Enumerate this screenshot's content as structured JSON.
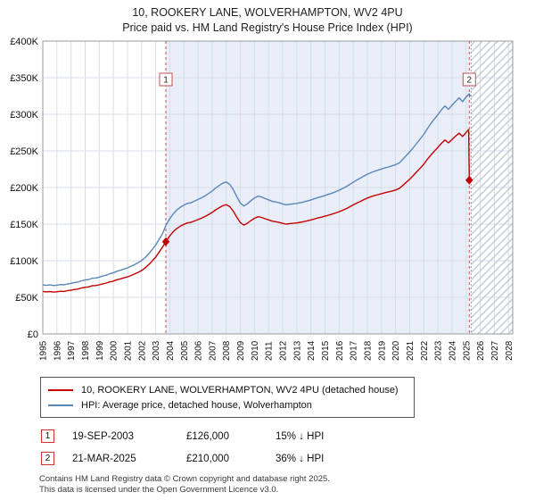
{
  "title": {
    "line1": "10, ROOKERY LANE, WOLVERHAMPTON, WV2 4PU",
    "line2": "Price paid vs. HM Land Registry's House Price Index (HPI)"
  },
  "chart_data": {
    "type": "line",
    "xlim": [
      1995,
      2028.3
    ],
    "ylim": [
      0,
      400000
    ],
    "grid": true,
    "legend_position": "bottom",
    "xticks": [
      1995,
      1996,
      1997,
      1998,
      1999,
      2000,
      2001,
      2002,
      2003,
      2004,
      2005,
      2006,
      2007,
      2008,
      2009,
      2010,
      2011,
      2012,
      2013,
      2014,
      2015,
      2016,
      2017,
      2018,
      2019,
      2020,
      2021,
      2022,
      2023,
      2024,
      2025,
      2026,
      2027,
      2028
    ],
    "yticks": [
      {
        "v": 0,
        "label": "£0"
      },
      {
        "v": 50000,
        "label": "£50K"
      },
      {
        "v": 100000,
        "label": "£100K"
      },
      {
        "v": 150000,
        "label": "£150K"
      },
      {
        "v": 200000,
        "label": "£200K"
      },
      {
        "v": 250000,
        "label": "£250K"
      },
      {
        "v": 300000,
        "label": "£300K"
      },
      {
        "v": 350000,
        "label": "£350K"
      },
      {
        "v": 400000,
        "label": "£400K"
      }
    ],
    "shaded_region": {
      "from": 2003.72,
      "to": 2025.22
    },
    "hatch_region": {
      "from": 2025.35,
      "to": 2028.3
    },
    "colors": {
      "shade": "#e9eef8",
      "grid": "#d7dde8",
      "hatch": "#c5cbd6",
      "frame": "#999999",
      "dashed": "#c05050"
    },
    "series": [
      {
        "name": "10, ROOKERY LANE, WOLVERHAMPTON, WV2 4PU (detached house)",
        "color": "#c40000",
        "points": [
          [
            1995,
            58000
          ],
          [
            1995.25,
            57400
          ],
          [
            1995.5,
            57900
          ],
          [
            1995.75,
            57200
          ],
          [
            1996,
            57600
          ],
          [
            1996.25,
            58300
          ],
          [
            1996.5,
            58100
          ],
          [
            1996.75,
            59000
          ],
          [
            1997,
            59800
          ],
          [
            1997.25,
            60700
          ],
          [
            1997.5,
            61400
          ],
          [
            1997.75,
            62800
          ],
          [
            1998,
            63700
          ],
          [
            1998.25,
            64300
          ],
          [
            1998.5,
            65800
          ],
          [
            1998.75,
            66100
          ],
          [
            1999,
            67100
          ],
          [
            1999.25,
            68400
          ],
          [
            1999.5,
            69500
          ],
          [
            1999.75,
            71100
          ],
          [
            2000,
            72100
          ],
          [
            2000.25,
            74000
          ],
          [
            2000.5,
            75100
          ],
          [
            2000.75,
            76700
          ],
          [
            2001,
            77900
          ],
          [
            2001.25,
            79800
          ],
          [
            2001.5,
            81800
          ],
          [
            2001.75,
            84000
          ],
          [
            2002,
            86600
          ],
          [
            2002.25,
            90000
          ],
          [
            2002.5,
            94500
          ],
          [
            2002.75,
            99600
          ],
          [
            2003,
            104900
          ],
          [
            2003.25,
            111900
          ],
          [
            2003.5,
            119000
          ],
          [
            2003.72,
            126000
          ],
          [
            2004,
            133900
          ],
          [
            2004.25,
            139700
          ],
          [
            2004.5,
            144000
          ],
          [
            2004.75,
            147200
          ],
          [
            2005,
            149700
          ],
          [
            2005.25,
            151600
          ],
          [
            2005.5,
            152400
          ],
          [
            2005.75,
            154300
          ],
          [
            2006,
            156200
          ],
          [
            2006.25,
            158100
          ],
          [
            2006.5,
            160500
          ],
          [
            2006.75,
            163100
          ],
          [
            2007,
            166000
          ],
          [
            2007.25,
            169500
          ],
          [
            2007.5,
            172400
          ],
          [
            2007.75,
            175000
          ],
          [
            2008,
            176600
          ],
          [
            2008.25,
            173800
          ],
          [
            2008.5,
            167700
          ],
          [
            2008.75,
            159400
          ],
          [
            2009,
            151900
          ],
          [
            2009.25,
            148600
          ],
          [
            2009.5,
            151200
          ],
          [
            2009.75,
            154700
          ],
          [
            2010,
            157900
          ],
          [
            2010.25,
            160100
          ],
          [
            2010.5,
            159100
          ],
          [
            2010.75,
            157300
          ],
          [
            2011,
            155800
          ],
          [
            2011.25,
            154000
          ],
          [
            2011.5,
            153300
          ],
          [
            2011.75,
            152300
          ],
          [
            2012,
            151000
          ],
          [
            2012.25,
            150000
          ],
          [
            2012.5,
            150700
          ],
          [
            2012.75,
            151100
          ],
          [
            2013,
            151600
          ],
          [
            2013.25,
            152400
          ],
          [
            2013.5,
            153400
          ],
          [
            2013.75,
            154500
          ],
          [
            2014,
            155700
          ],
          [
            2014.25,
            157000
          ],
          [
            2014.5,
            158400
          ],
          [
            2014.75,
            159500
          ],
          [
            2015,
            160800
          ],
          [
            2015.25,
            162200
          ],
          [
            2015.5,
            163600
          ],
          [
            2015.75,
            165200
          ],
          [
            2016,
            167000
          ],
          [
            2016.25,
            168900
          ],
          [
            2016.5,
            171100
          ],
          [
            2016.75,
            173600
          ],
          [
            2017,
            176300
          ],
          [
            2017.25,
            178700
          ],
          [
            2017.5,
            181000
          ],
          [
            2017.75,
            183400
          ],
          [
            2018,
            185600
          ],
          [
            2018.25,
            187400
          ],
          [
            2018.5,
            188900
          ],
          [
            2018.75,
            190300
          ],
          [
            2019,
            191600
          ],
          [
            2019.25,
            192900
          ],
          [
            2019.5,
            194000
          ],
          [
            2019.75,
            195300
          ],
          [
            2020,
            196600
          ],
          [
            2020.25,
            198500
          ],
          [
            2020.5,
            202700
          ],
          [
            2020.75,
            207000
          ],
          [
            2021,
            211400
          ],
          [
            2021.25,
            216300
          ],
          [
            2021.5,
            221500
          ],
          [
            2021.75,
            226500
          ],
          [
            2022,
            231800
          ],
          [
            2022.25,
            238500
          ],
          [
            2022.5,
            244300
          ],
          [
            2022.75,
            249700
          ],
          [
            2023,
            254700
          ],
          [
            2023.25,
            260400
          ],
          [
            2023.5,
            264900
          ],
          [
            2023.75,
            261000
          ],
          [
            2024,
            265600
          ],
          [
            2024.25,
            270100
          ],
          [
            2024.5,
            274200
          ],
          [
            2024.75,
            269800
          ],
          [
            2025,
            275200
          ],
          [
            2025.18,
            279200
          ],
          [
            2025.22,
            210000
          ]
        ]
      },
      {
        "name": "HPI: Average price, detached house, Wolverhampton",
        "color": "#5b87b7",
        "points": [
          [
            1995,
            67000
          ],
          [
            1995.25,
            66300
          ],
          [
            1995.5,
            66900
          ],
          [
            1995.75,
            66100
          ],
          [
            1996,
            66600
          ],
          [
            1996.25,
            67400
          ],
          [
            1996.5,
            67100
          ],
          [
            1996.75,
            68200
          ],
          [
            1997,
            69100
          ],
          [
            1997.25,
            70200
          ],
          [
            1997.5,
            71000
          ],
          [
            1997.75,
            72600
          ],
          [
            1998,
            73600
          ],
          [
            1998.25,
            74300
          ],
          [
            1998.5,
            76100
          ],
          [
            1998.75,
            76400
          ],
          [
            1999,
            77600
          ],
          [
            1999.25,
            79100
          ],
          [
            1999.5,
            80300
          ],
          [
            1999.75,
            82200
          ],
          [
            2000,
            83400
          ],
          [
            2000.25,
            85600
          ],
          [
            2000.5,
            86900
          ],
          [
            2000.75,
            88700
          ],
          [
            2001,
            90100
          ],
          [
            2001.25,
            92300
          ],
          [
            2001.5,
            94600
          ],
          [
            2001.75,
            97200
          ],
          [
            2002,
            100200
          ],
          [
            2002.25,
            104100
          ],
          [
            2002.5,
            109300
          ],
          [
            2002.75,
            115200
          ],
          [
            2003,
            121300
          ],
          [
            2003.25,
            129400
          ],
          [
            2003.5,
            137600
          ],
          [
            2003.72,
            148200
          ],
          [
            2004,
            157400
          ],
          [
            2004.25,
            164200
          ],
          [
            2004.5,
            169300
          ],
          [
            2004.75,
            173100
          ],
          [
            2005,
            176000
          ],
          [
            2005.25,
            178300
          ],
          [
            2005.5,
            179200
          ],
          [
            2005.75,
            181400
          ],
          [
            2006,
            183600
          ],
          [
            2006.25,
            185900
          ],
          [
            2006.5,
            188700
          ],
          [
            2006.75,
            191800
          ],
          [
            2007,
            195200
          ],
          [
            2007.25,
            199300
          ],
          [
            2007.5,
            202700
          ],
          [
            2007.75,
            205800
          ],
          [
            2008,
            207600
          ],
          [
            2008.25,
            204300
          ],
          [
            2008.5,
            197200
          ],
          [
            2008.75,
            187400
          ],
          [
            2009,
            178600
          ],
          [
            2009.25,
            174700
          ],
          [
            2009.5,
            177800
          ],
          [
            2009.75,
            181900
          ],
          [
            2010,
            185700
          ],
          [
            2010.25,
            188200
          ],
          [
            2010.5,
            187100
          ],
          [
            2010.75,
            184900
          ],
          [
            2011,
            183200
          ],
          [
            2011.25,
            181100
          ],
          [
            2011.5,
            180300
          ],
          [
            2011.75,
            179100
          ],
          [
            2012,
            177600
          ],
          [
            2012.25,
            176400
          ],
          [
            2012.5,
            177200
          ],
          [
            2012.75,
            177700
          ],
          [
            2013,
            178300
          ],
          [
            2013.25,
            179200
          ],
          [
            2013.5,
            180400
          ],
          [
            2013.75,
            181600
          ],
          [
            2014,
            183100
          ],
          [
            2014.25,
            184600
          ],
          [
            2014.5,
            186200
          ],
          [
            2014.75,
            187600
          ],
          [
            2015,
            189100
          ],
          [
            2015.25,
            190700
          ],
          [
            2015.5,
            192300
          ],
          [
            2015.75,
            194200
          ],
          [
            2016,
            196300
          ],
          [
            2016.25,
            198600
          ],
          [
            2016.5,
            201200
          ],
          [
            2016.75,
            204100
          ],
          [
            2017,
            207300
          ],
          [
            2017.25,
            210100
          ],
          [
            2017.5,
            212800
          ],
          [
            2017.75,
            215600
          ],
          [
            2018,
            218200
          ],
          [
            2018.25,
            220300
          ],
          [
            2018.5,
            222100
          ],
          [
            2018.75,
            223700
          ],
          [
            2019,
            225200
          ],
          [
            2019.25,
            226800
          ],
          [
            2019.5,
            228100
          ],
          [
            2019.75,
            229600
          ],
          [
            2020,
            231200
          ],
          [
            2020.25,
            233400
          ],
          [
            2020.5,
            238300
          ],
          [
            2020.75,
            243400
          ],
          [
            2021,
            248600
          ],
          [
            2021.25,
            254300
          ],
          [
            2021.5,
            260400
          ],
          [
            2021.75,
            266300
          ],
          [
            2022,
            272500
          ],
          [
            2022.25,
            280400
          ],
          [
            2022.5,
            287300
          ],
          [
            2022.75,
            293600
          ],
          [
            2023,
            299400
          ],
          [
            2023.25,
            306200
          ],
          [
            2023.5,
            311400
          ],
          [
            2023.75,
            306800
          ],
          [
            2024,
            312300
          ],
          [
            2024.25,
            317600
          ],
          [
            2024.5,
            322400
          ],
          [
            2024.75,
            317200
          ],
          [
            2025,
            323600
          ],
          [
            2025.22,
            328000
          ],
          [
            2025.3,
            324500
          ]
        ]
      }
    ],
    "sale_markers": [
      {
        "label": "1",
        "x": 2003.72,
        "y": 126000
      },
      {
        "label": "2",
        "x": 2025.22,
        "y": 210000
      }
    ]
  },
  "legend": {
    "items": [
      {
        "label": "10, ROOKERY LANE, WOLVERHAMPTON, WV2 4PU (detached house)"
      },
      {
        "label": "HPI: Average price, detached house, Wolverhampton"
      }
    ]
  },
  "annotations": [
    {
      "num": "1",
      "date": "19-SEP-2003",
      "price": "£126,000",
      "hpi": "15% ↓ HPI"
    },
    {
      "num": "2",
      "date": "21-MAR-2025",
      "price": "£210,000",
      "hpi": "36% ↓ HPI"
    }
  ],
  "footer": {
    "line1": "Contains HM Land Registry data © Crown copyright and database right 2025.",
    "line2": "This data is licensed under the Open Government Licence v3.0."
  }
}
